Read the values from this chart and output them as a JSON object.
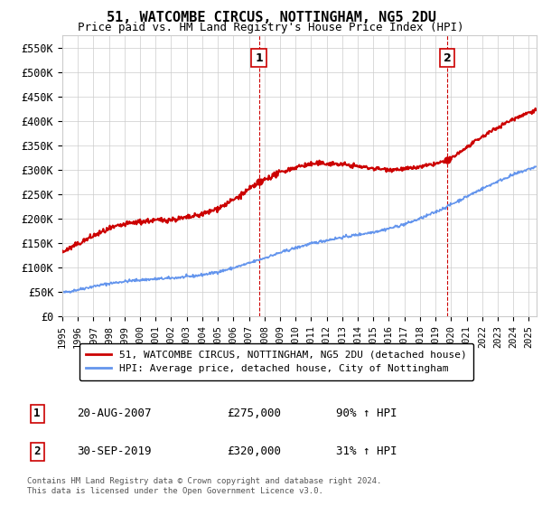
{
  "title": "51, WATCOMBE CIRCUS, NOTTINGHAM, NG5 2DU",
  "subtitle": "Price paid vs. HM Land Registry's House Price Index (HPI)",
  "ylabel_ticks": [
    "£0",
    "£50K",
    "£100K",
    "£150K",
    "£200K",
    "£250K",
    "£300K",
    "£350K",
    "£400K",
    "£450K",
    "£500K",
    "£550K"
  ],
  "ytick_values": [
    0,
    50000,
    100000,
    150000,
    200000,
    250000,
    300000,
    350000,
    400000,
    450000,
    500000,
    550000
  ],
  "ylim": [
    0,
    575000
  ],
  "xlim_start": 1995.0,
  "xlim_end": 2025.5,
  "sale1": {
    "date": 2007.64,
    "price": 275000,
    "label": "1",
    "date_str": "20-AUG-2007",
    "pct": "90% ↑ HPI"
  },
  "sale2": {
    "date": 2019.75,
    "price": 320000,
    "label": "2",
    "date_str": "30-SEP-2019",
    "pct": "31% ↑ HPI"
  },
  "hpi_color": "#6495ED",
  "price_color": "#CC0000",
  "vline_color": "#CC0000",
  "marker_color": "#CC0000",
  "grid_color": "#CCCCCC",
  "background_color": "#FFFFFF",
  "legend_label_price": "51, WATCOMBE CIRCUS, NOTTINGHAM, NG5 2DU (detached house)",
  "legend_label_hpi": "HPI: Average price, detached house, City of Nottingham",
  "footer": "Contains HM Land Registry data © Crown copyright and database right 2024.\nThis data is licensed under the Open Government Licence v3.0.",
  "info1_label": "1",
  "info1_date": "20-AUG-2007",
  "info1_price": "£275,000",
  "info1_pct": "90% ↑ HPI",
  "info2_label": "2",
  "info2_date": "30-SEP-2019",
  "info2_price": "£320,000",
  "info2_pct": "31% ↑ HPI",
  "xtick_years": [
    1995,
    1996,
    1997,
    1998,
    1999,
    2000,
    2001,
    2002,
    2003,
    2004,
    2005,
    2006,
    2007,
    2008,
    2009,
    2010,
    2011,
    2012,
    2013,
    2014,
    2015,
    2016,
    2017,
    2018,
    2019,
    2020,
    2021,
    2022,
    2023,
    2024,
    2025
  ]
}
